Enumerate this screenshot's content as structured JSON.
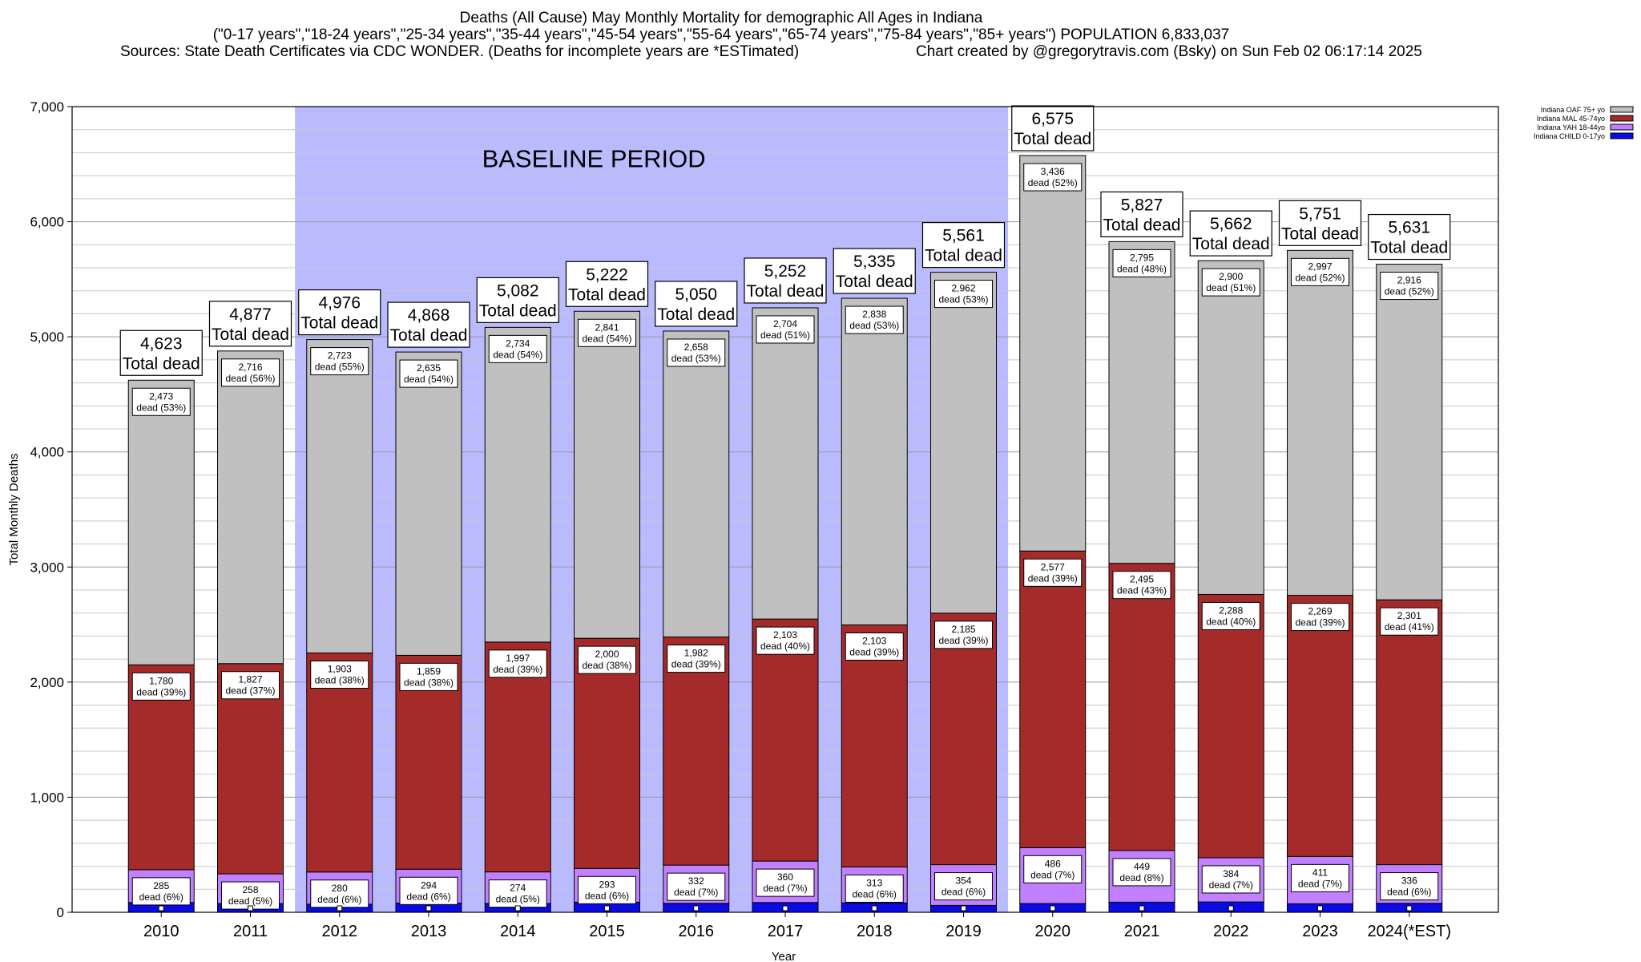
{
  "header": {
    "title": "Deaths (All Cause) May Monthly Mortality for demographic All Ages in Indiana",
    "subtitle": "(\"0-17 years\",\"18-24 years\",\"25-34 years\",\"35-44 years\",\"45-54 years\",\"55-64 years\",\"65-74 years\",\"75-84 years\",\"85+ years\") POPULATION 6,833,037",
    "sources": "Sources: State Death Certificates via CDC WONDER. (Deaths for incomplete years are *ESTimated)",
    "credit": "Chart created by @gregorytravis.com (Bsky) on Sun Feb 02 06:17:14 2025"
  },
  "chart_data": {
    "type": "bar",
    "stacked": true,
    "xlabel": "Year",
    "ylabel": "Total Monthly Deaths",
    "ylim": [
      0,
      7000
    ],
    "yticks": [
      0,
      1000,
      2000,
      3000,
      4000,
      5000,
      6000,
      7000
    ],
    "ytick_labels": [
      "0",
      "1,000",
      "2,000",
      "3,000",
      "4,000",
      "5,000",
      "6,000",
      "7,000"
    ],
    "grid": true,
    "legend_position": "top-right",
    "categories": [
      "2010",
      "2011",
      "2012",
      "2013",
      "2014",
      "2015",
      "2016",
      "2017",
      "2018",
      "2019",
      "2020",
      "2021",
      "2022",
      "2023",
      "2024(*EST)"
    ],
    "series": [
      {
        "name": "Indiana CHILD 0-17yo",
        "color": "#0a0ae6",
        "values": [
          85,
          76,
          70,
          80,
          77,
          88,
          78,
          85,
          81,
          60,
          76,
          88,
          90,
          74,
          78
        ]
      },
      {
        "name": "Indiana YAH 18-44yo",
        "color": "#c080ff",
        "values": [
          285,
          258,
          280,
          294,
          274,
          293,
          332,
          360,
          313,
          354,
          486,
          449,
          384,
          411,
          336
        ]
      },
      {
        "name": "Indiana MAL 45-74yo",
        "color": "#a52a2a",
        "values": [
          1780,
          1827,
          1903,
          1859,
          1997,
          2000,
          1982,
          2103,
          2103,
          2185,
          2577,
          2495,
          2288,
          2269,
          2301
        ]
      },
      {
        "name": "Indiana OAF 75+ yo",
        "color": "#c0c0c0",
        "values": [
          2473,
          2716,
          2723,
          2635,
          2734,
          2841,
          2658,
          2704,
          2838,
          2962,
          3436,
          2795,
          2900,
          2997,
          2916
        ]
      }
    ],
    "segment_labels": {
      "Indiana YAH 18-44yo": {
        "values": [
          "285",
          "258",
          "280",
          "294",
          "274",
          "293",
          "332",
          "360",
          "313",
          "354",
          "486",
          "449",
          "384",
          "411",
          "336"
        ],
        "texts": [
          "dead (6%)",
          "dead (5%)",
          "dead (6%)",
          "dead (6%)",
          "dead (5%)",
          "dead (6%)",
          "dead (7%)",
          "dead (7%)",
          "dead (6%)",
          "dead (6%)",
          "dead (7%)",
          "dead (8%)",
          "dead (7%)",
          "dead (7%)",
          "dead (6%)"
        ]
      },
      "Indiana MAL 45-74yo": {
        "values": [
          "1,780",
          "1,827",
          "1,903",
          "1,859",
          "1,997",
          "2,000",
          "1,982",
          "2,103",
          "2,103",
          "2,185",
          "2,577",
          "2,495",
          "2,288",
          "2,269",
          "2,301"
        ],
        "texts": [
          "dead (39%)",
          "dead (37%)",
          "dead (38%)",
          "dead (38%)",
          "dead (39%)",
          "dead (38%)",
          "dead (39%)",
          "dead (40%)",
          "dead (39%)",
          "dead (39%)",
          "dead (39%)",
          "dead (43%)",
          "dead (40%)",
          "dead (39%)",
          "dead (41%)"
        ]
      },
      "Indiana OAF 75+ yo": {
        "values": [
          "2,473",
          "2,716",
          "2,723",
          "2,635",
          "2,734",
          "2,841",
          "2,658",
          "2,704",
          "2,838",
          "2,962",
          "3,436",
          "2,795",
          "2,900",
          "2,997",
          "2,916"
        ],
        "texts": [
          "dead (53%)",
          "dead (56%)",
          "dead (55%)",
          "dead (54%)",
          "dead (54%)",
          "dead (54%)",
          "dead (53%)",
          "dead (51%)",
          "dead (53%)",
          "dead (53%)",
          "dead (52%)",
          "dead (48%)",
          "dead (51%)",
          "dead (52%)",
          "dead (52%)"
        ]
      }
    },
    "totals": [
      4623,
      4877,
      4976,
      4868,
      5082,
      5222,
      5050,
      5252,
      5335,
      5561,
      6575,
      5827,
      5662,
      5751,
      5631
    ],
    "total_labels": [
      "4,623",
      "4,877",
      "4,976",
      "4,868",
      "5,082",
      "5,222",
      "5,050",
      "5,252",
      "5,335",
      "5,561",
      "6,575",
      "5,827",
      "5,662",
      "5,751",
      "5,631"
    ],
    "total_suffix": "Total dead",
    "annotations": {
      "baseline_label": "BASELINE PERIOD",
      "baseline_years": [
        "2012",
        "2019"
      ],
      "baseline_color": "#babaff"
    }
  }
}
